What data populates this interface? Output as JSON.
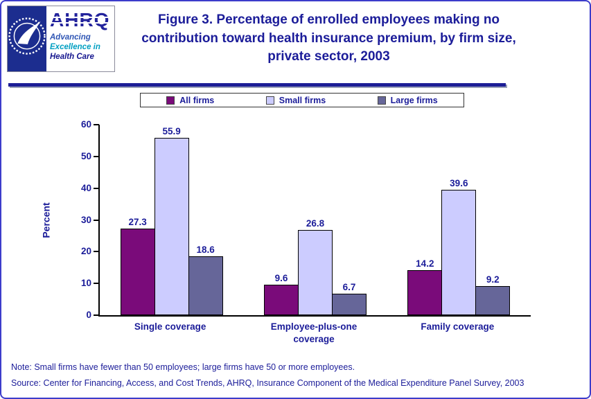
{
  "logo": {
    "acronym": "AHRQ",
    "tagline_lines": [
      "Advancing",
      "Excellence in",
      "Health Care"
    ]
  },
  "colors": {
    "navy_text": "#1b1c99",
    "page_border": "#3c3ccb",
    "all_firms": "#7a0b7a",
    "small_firms": "#ccccff",
    "large_firms": "#666699"
  },
  "chart_data": {
    "type": "bar",
    "title": "Figure 3. Percentage of enrolled employees making no contribution toward health insurance premium, by firm size, private sector, 2003",
    "ylabel": "Percent",
    "xlabel": "",
    "ylim": [
      0,
      60
    ],
    "ytick_step": 10,
    "grid": false,
    "legend_position": "top",
    "categories": [
      "Single coverage",
      "Employee-plus-one coverage",
      "Family coverage"
    ],
    "series": [
      {
        "name": "All firms",
        "color": "#7a0b7a",
        "values": [
          27.3,
          9.6,
          14.2
        ]
      },
      {
        "name": "Small firms",
        "color": "#ccccff",
        "values": [
          55.9,
          26.8,
          39.6
        ]
      },
      {
        "name": "Large firms",
        "color": "#666699",
        "values": [
          18.6,
          6.7,
          9.2
        ]
      }
    ]
  },
  "footer": {
    "note": "Note: Small firms have fewer than 50 employees; large firms have 50 or more employees.",
    "source": "Source: Center for Financing, Access, and Cost Trends, AHRQ, Insurance Component of the Medical Expenditure Panel Survey, 2003"
  }
}
